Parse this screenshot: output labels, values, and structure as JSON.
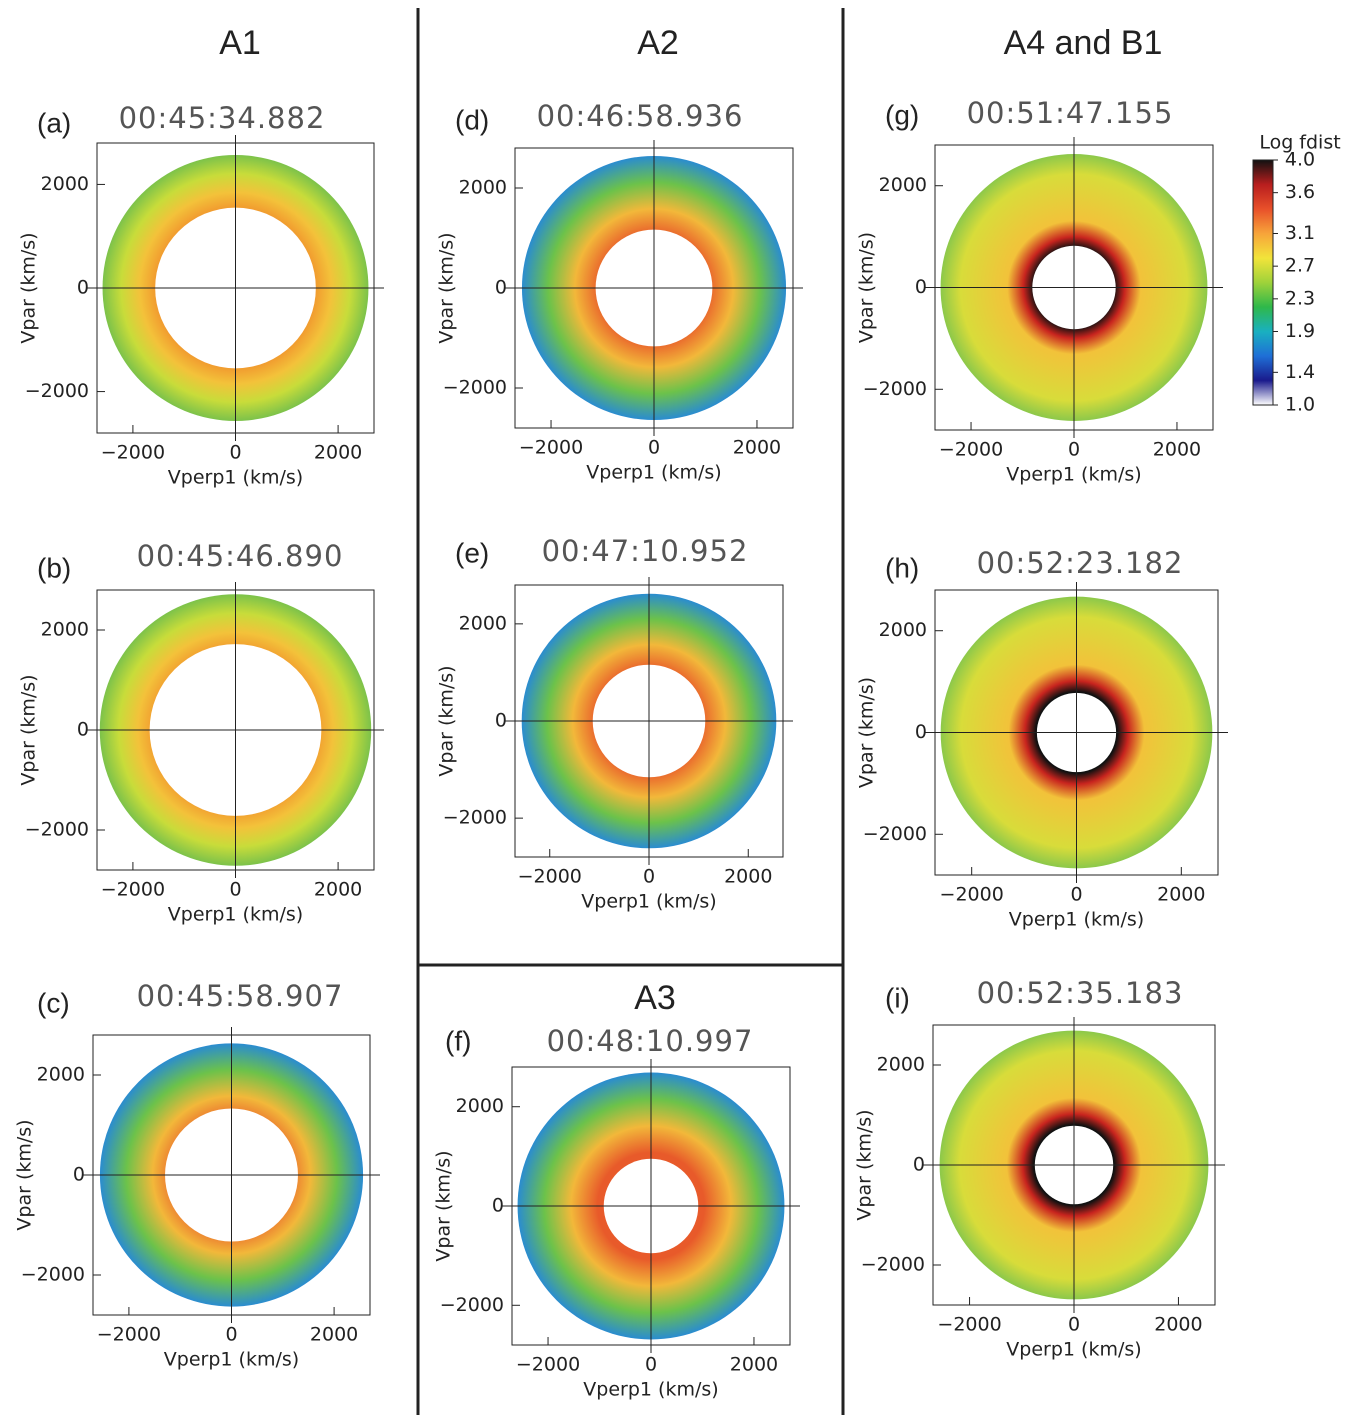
{
  "groups": [
    "A1",
    "A2",
    "A3",
    "A4 and B1"
  ],
  "chart_data": [
    {
      "type": "distribution",
      "label": "(a)",
      "title": "00:45:34.882",
      "xlabel": "Vperp1 (km/s)",
      "ylabel": "Vpar (km/s)",
      "xlim": [
        -2700,
        2700
      ],
      "ylim": [
        -2800,
        2800
      ],
      "xticks": [
        {
          "value": -2000,
          "label": "−2000"
        },
        0,
        2000
      ],
      "yticks": [
        {
          "value": -2000,
          "label": "−2000"
        },
        0,
        2000
      ]
    },
    {
      "type": "distribution",
      "label": "(b)",
      "title": "00:45:46.890",
      "xlabel": "Vperp1 (km/s)",
      "ylabel": "Vpar (km/s)",
      "xlim": [
        -2700,
        2700
      ],
      "ylim": [
        -2800,
        2800
      ],
      "xticks": [
        {
          "value": -2000,
          "label": "−2000"
        },
        0,
        2000
      ],
      "yticks": [
        {
          "value": -2000,
          "label": "−2000"
        },
        0,
        2000
      ]
    },
    {
      "type": "distribution",
      "label": "(c)",
      "title": "00:45:58.907",
      "xlabel": "Vperp1 (km/s)",
      "ylabel": "Vpar (km/s)",
      "xlim": [
        -2700,
        2700
      ],
      "ylim": [
        -2800,
        2800
      ],
      "xticks": [
        {
          "value": -2000,
          "label": "−2000"
        },
        0,
        2000
      ],
      "yticks": [
        {
          "value": -2000,
          "label": "−2000"
        },
        0,
        2000
      ]
    },
    {
      "type": "distribution",
      "label": "(d)",
      "title": "00:46:58.936",
      "xlabel": "Vperp1 (km/s)",
      "ylabel": "Vpar (km/s)",
      "xlim": [
        -2700,
        2700
      ],
      "ylim": [
        -2800,
        2800
      ],
      "xticks": [
        {
          "value": -2000,
          "label": "−2000"
        },
        0,
        2000
      ],
      "yticks": [
        {
          "value": -2000,
          "label": "−2000"
        },
        0,
        2000
      ]
    },
    {
      "type": "distribution",
      "label": "(e)",
      "title": "00:47:10.952",
      "xlabel": "Vperp1 (km/s)",
      "ylabel": "Vpar (km/s)",
      "xlim": [
        -2700,
        2700
      ],
      "ylim": [
        -2800,
        2800
      ],
      "xticks": [
        {
          "value": -2000,
          "label": "−2000"
        },
        0,
        2000
      ],
      "yticks": [
        {
          "value": -2000,
          "label": "−2000"
        },
        0,
        2000
      ]
    },
    {
      "type": "distribution",
      "label": "(f)",
      "title": "00:48:10.997",
      "xlabel": "Vperp1 (km/s)",
      "ylabel": "Vpar (km/s)",
      "xlim": [
        -2700,
        2700
      ],
      "ylim": [
        -2800,
        2800
      ],
      "xticks": [
        {
          "value": -2000,
          "label": "−2000"
        },
        0,
        2000
      ],
      "yticks": [
        {
          "value": -2000,
          "label": "−2000"
        },
        0,
        2000
      ]
    },
    {
      "type": "distribution",
      "label": "(g)",
      "title": "00:51:47.155",
      "xlabel": "Vperp1 (km/s)",
      "ylabel": "Vpar (km/s)",
      "xlim": [
        -2700,
        2700
      ],
      "ylim": [
        -2800,
        2800
      ],
      "xticks": [
        {
          "value": -2000,
          "label": "−2000"
        },
        0,
        2000
      ],
      "yticks": [
        {
          "value": -2000,
          "label": "−2000"
        },
        0,
        2000
      ]
    },
    {
      "type": "distribution",
      "label": "(h)",
      "title": "00:52:23.182",
      "xlabel": "Vperp1 (km/s)",
      "ylabel": "Vpar (km/s)",
      "xlim": [
        -2700,
        2700
      ],
      "ylim": [
        -2800,
        2800
      ],
      "xticks": [
        {
          "value": -2000,
          "label": "−2000"
        },
        0,
        2000
      ],
      "yticks": [
        {
          "value": -2000,
          "label": "−2000"
        },
        0,
        2000
      ]
    },
    {
      "type": "distribution",
      "label": "(i)",
      "title": "00:52:35.183",
      "xlabel": "Vperp1 (km/s)",
      "ylabel": "Vpar (km/s)",
      "xlim": [
        -2700,
        2700
      ],
      "ylim": [
        -2800,
        2800
      ],
      "xticks": [
        {
          "value": -2000,
          "label": "−2000"
        },
        0,
        2000
      ],
      "yticks": [
        {
          "value": -2000,
          "label": "−2000"
        },
        0,
        2000
      ]
    }
  ],
  "colorbar": {
    "title": "Log  fdist",
    "lim": [
      1.0,
      4.0
    ],
    "ticks": [
      {
        "value": 4,
        "label": "4.0"
      },
      3.6,
      3.1,
      2.7,
      2.3,
      1.9,
      1.4,
      {
        "value": 1,
        "label": "1.0"
      }
    ],
    "colors": [
      "#ffffff",
      "#1a1a8c",
      "#1f6fd6",
      "#19b0c0",
      "#2fb84a",
      "#9fd23a",
      "#f2e43a",
      "#f7a43a",
      "#e8502a",
      "#b81e1e",
      "#111111"
    ]
  }
}
